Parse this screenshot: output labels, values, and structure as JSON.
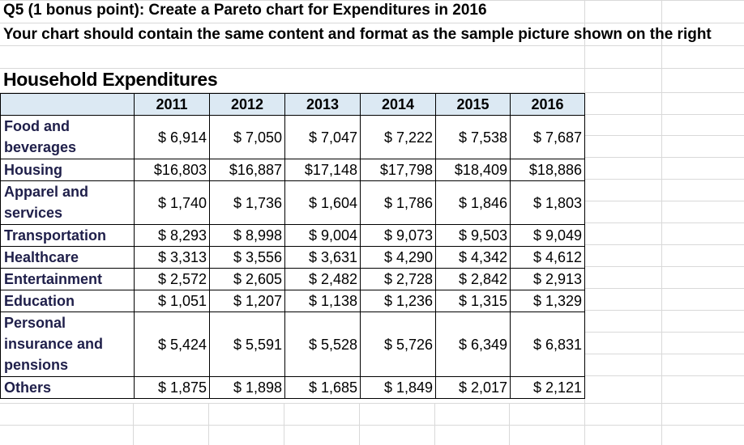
{
  "question": {
    "line1": "Q5 (1 bonus point): Create a Pareto chart for Expenditures in 2016",
    "line2": "Your chart should contain the same content and format as the sample picture shown on the right"
  },
  "sheet": {
    "title": "Household Expenditures",
    "header_fill": "#dce9f3",
    "years": [
      "2011",
      "2012",
      "2013",
      "2014",
      "2015",
      "2016"
    ],
    "rows": [
      {
        "category": "Food and beverages",
        "values": [
          "$ 6,914",
          "$ 7,050",
          "$ 7,047",
          "$ 7,222",
          "$ 7,538",
          "$ 7,687"
        ]
      },
      {
        "category": "Housing",
        "values": [
          "$16,803",
          "$16,887",
          "$17,148",
          "$17,798",
          "$18,409",
          "$18,886"
        ]
      },
      {
        "category": "Apparel and services",
        "values": [
          "$ 1,740",
          "$ 1,736",
          "$ 1,604",
          "$ 1,786",
          "$ 1,846",
          "$ 1,803"
        ]
      },
      {
        "category": "Transportation",
        "values": [
          "$ 8,293",
          "$ 8,998",
          "$ 9,004",
          "$ 9,073",
          "$ 9,503",
          "$ 9,049"
        ]
      },
      {
        "category": "Healthcare",
        "values": [
          "$ 3,313",
          "$ 3,556",
          "$ 3,631",
          "$ 4,290",
          "$ 4,342",
          "$ 4,612"
        ]
      },
      {
        "category": "Entertainment",
        "values": [
          "$ 2,572",
          "$ 2,605",
          "$ 2,482",
          "$ 2,728",
          "$ 2,842",
          "$ 2,913"
        ]
      },
      {
        "category": "Education",
        "values": [
          "$ 1,051",
          "$ 1,207",
          "$ 1,138",
          "$ 1,236",
          "$ 1,315",
          "$ 1,329"
        ]
      },
      {
        "category": "Personal insurance and pensions",
        "values": [
          "$ 5,424",
          "$ 5,591",
          "$ 5,528",
          "$ 5,726",
          "$ 6,349",
          "$ 6,831"
        ]
      },
      {
        "category": "Others",
        "values": [
          "$ 1,875",
          "$ 1,898",
          "$ 1,685",
          "$ 1,849",
          "$ 2,017",
          "$ 2,121"
        ]
      }
    ]
  }
}
